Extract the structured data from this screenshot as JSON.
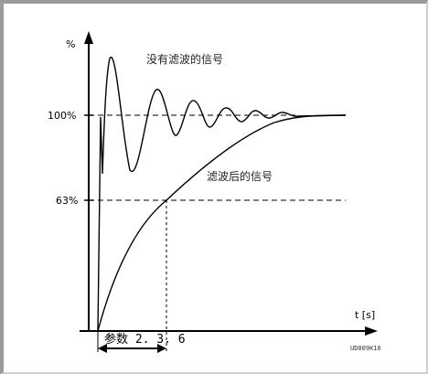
{
  "labels": {
    "y_unit": "%",
    "level_100": "100%",
    "level_63": "63%",
    "x_unit": "t [s]",
    "unfiltered": "没有滤波的信号",
    "filtered": "滤波后的信号",
    "parameter": "参数 2. 3. 6",
    "figure_code": "UD009K16"
  },
  "colors": {
    "line": "#000000",
    "frame": "#9a9a9a"
  }
}
